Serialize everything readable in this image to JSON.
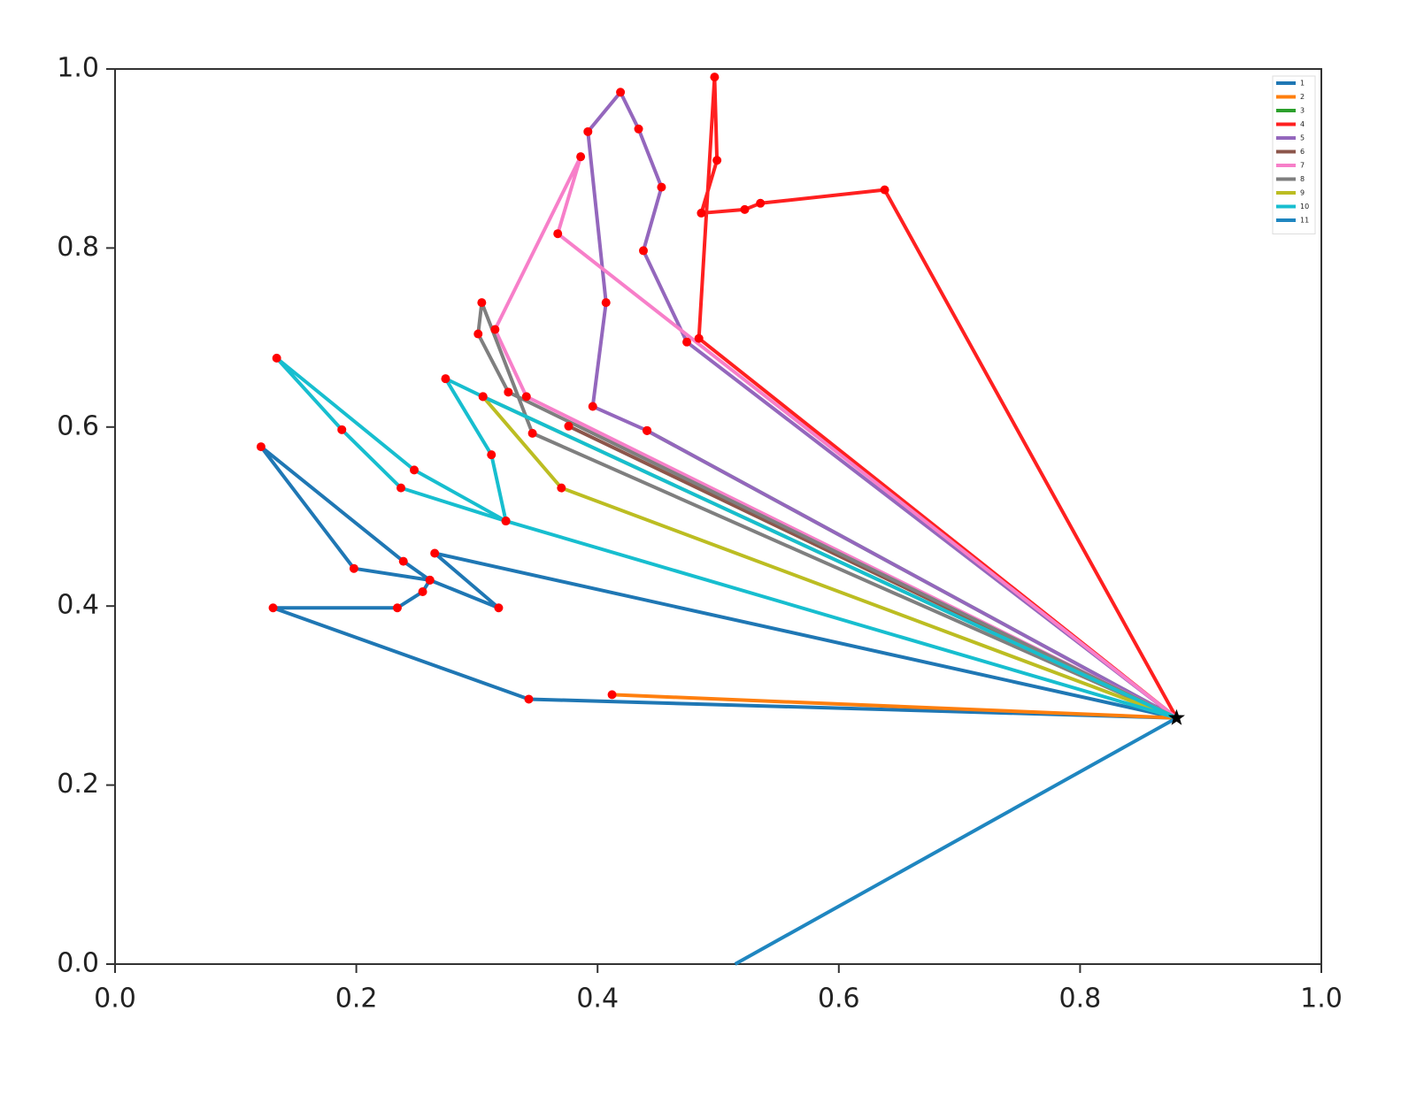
{
  "chart_data": {
    "type": "line",
    "xlim": [
      0,
      1
    ],
    "ylim": [
      0,
      1
    ],
    "xticks": [
      {
        "value": 0,
        "label": "0.0"
      },
      0.2,
      0.4,
      0.6,
      0.8,
      {
        "value": 1,
        "label": "1.0"
      }
    ],
    "yticks": [
      {
        "value": 0,
        "label": "0.0"
      },
      0.2,
      0.4,
      0.6,
      0.8,
      {
        "value": 1,
        "label": "1.0"
      }
    ],
    "point_color": "#ff0000",
    "depot": {
      "x": 0.88,
      "y": 0.275,
      "color": "#000000"
    },
    "legend": "upper right",
    "series": [
      {
        "name": "1",
        "color": "#1f77b4",
        "x": [
          0.88,
          0.343,
          0.131,
          0.234,
          0.255,
          0.261,
          0.198,
          0.121,
          0.239,
          0.261,
          0.318,
          0.265,
          0.88
        ],
        "values": [
          0.275,
          0.296,
          0.398,
          0.398,
          0.416,
          0.429,
          0.442,
          0.578,
          0.45,
          0.429,
          0.398,
          0.459,
          0.275
        ]
      },
      {
        "name": "2",
        "color": "#ff7f0e",
        "x": [
          0.88,
          0.412,
          0.88
        ],
        "values": [
          0.275,
          0.301,
          0.275
        ]
      },
      {
        "name": "3",
        "color": "#2ca02c",
        "x": [
          0.88,
          0.441,
          0.88
        ],
        "values": [
          0.275,
          0.596,
          0.275
        ]
      },
      {
        "name": "4",
        "color": "#ff2020",
        "x": [
          0.88,
          0.638,
          0.535,
          0.522,
          0.486,
          0.499,
          0.497,
          0.484,
          0.88
        ],
        "values": [
          0.275,
          0.865,
          0.85,
          0.843,
          0.839,
          0.898,
          0.991,
          0.699,
          0.275
        ]
      },
      {
        "name": "5",
        "color": "#9467bd",
        "x": [
          0.88,
          0.474,
          0.438,
          0.453,
          0.434,
          0.419,
          0.392,
          0.407,
          0.396,
          0.441,
          0.88
        ],
        "values": [
          0.275,
          0.695,
          0.797,
          0.868,
          0.933,
          0.974,
          0.93,
          0.739,
          0.623,
          0.596,
          0.275
        ]
      },
      {
        "name": "6",
        "color": "#8c564b",
        "x": [
          0.88,
          0.376,
          0.88
        ],
        "values": [
          0.275,
          0.601,
          0.275
        ]
      },
      {
        "name": "7",
        "color": "#f77fc9",
        "x": [
          0.88,
          0.367,
          0.386,
          0.315,
          0.341,
          0.88
        ],
        "values": [
          0.275,
          0.816,
          0.902,
          0.709,
          0.634,
          0.275
        ]
      },
      {
        "name": "8",
        "color": "#7f7f7f",
        "x": [
          0.88,
          0.346,
          0.304,
          0.301,
          0.326,
          0.88
        ],
        "values": [
          0.275,
          0.593,
          0.739,
          0.704,
          0.639,
          0.275
        ]
      },
      {
        "name": "9",
        "color": "#bcbd22",
        "x": [
          0.88,
          0.37,
          0.305,
          0.88
        ],
        "values": [
          0.275,
          0.532,
          0.634,
          0.275
        ]
      },
      {
        "name": "10",
        "color": "#17becf",
        "x": [
          0.88,
          0.324,
          0.237,
          0.188,
          0.134,
          0.248,
          0.324,
          0.312,
          0.274,
          0.305,
          0.88
        ],
        "values": [
          0.275,
          0.495,
          0.532,
          0.597,
          0.677,
          0.552,
          0.495,
          0.569,
          0.654,
          0.634,
          0.275
        ]
      },
      {
        "name": "11",
        "color": "#1f86c0",
        "x": [
          0.88,
          0.514
        ],
        "values": [
          0.275,
          0
        ]
      }
    ]
  }
}
